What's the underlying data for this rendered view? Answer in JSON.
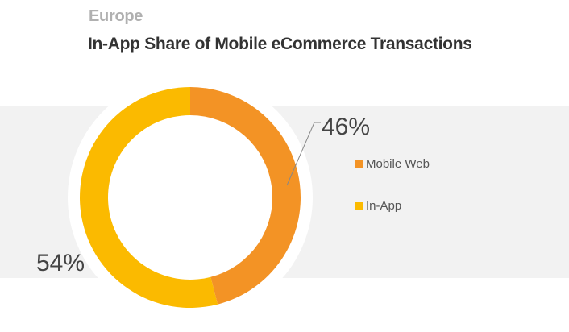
{
  "header": {
    "region": "Europe",
    "title": "In-App Share of Mobile eCommerce Transactions"
  },
  "chart_data": {
    "type": "pie",
    "variant": "donut",
    "title": "In-App Share of Mobile eCommerce Transactions",
    "subtitle": "Europe",
    "categories": [
      "Mobile Web",
      "In-App"
    ],
    "values": [
      46,
      54
    ],
    "data_labels": [
      "46%",
      "54%"
    ],
    "colors": [
      "#F39325",
      "#FBBA00"
    ],
    "legend": {
      "placement": "right",
      "entries": [
        "Mobile Web",
        "In-App"
      ]
    },
    "start_angle": "top, clockwise"
  }
}
